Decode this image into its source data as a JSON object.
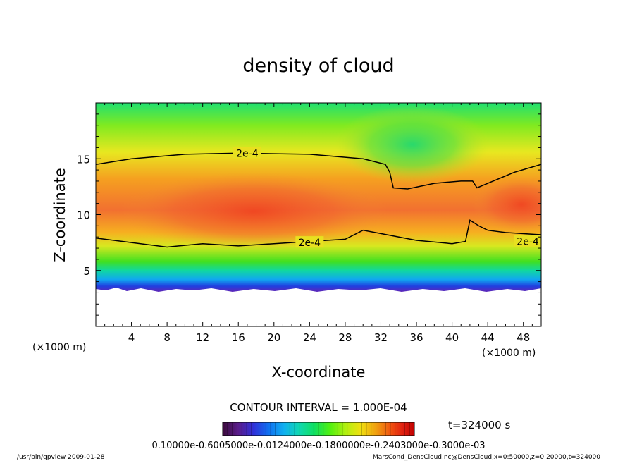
{
  "chart_data": {
    "type": "heatmap",
    "title": "density of cloud",
    "xlabel": "X-coordinate",
    "ylabel": "Z-coordinate",
    "x_unit_left": "(×1000 m)",
    "x_unit_right": "(×1000 m)",
    "xlim": [
      0,
      50
    ],
    "ylim": [
      0,
      20
    ],
    "xticks": [
      4,
      8,
      12,
      16,
      20,
      24,
      28,
      32,
      36,
      40,
      44,
      48
    ],
    "yticks": [
      5,
      10,
      15
    ],
    "contour_interval_text": "CONTOUR INTERVAL = 1.000E-04",
    "time_text": "t=324000 s",
    "colorbar_labels_text": "0.10000e-0.6005000e-0.0124000e-0.1800000e-0.2403000e-0.3000e-03",
    "contour_labels": [
      {
        "text": "2e-4",
        "x": 17,
        "z": 15.5
      },
      {
        "text": "2e-4",
        "x": 24,
        "z": 7.5
      },
      {
        "text": "2e-4",
        "x": 48.5,
        "z": 7.6
      }
    ],
    "contour_upper_2e4": [
      [
        0,
        14.5
      ],
      [
        4,
        15
      ],
      [
        10,
        15.4
      ],
      [
        16,
        15.5
      ],
      [
        24,
        15.4
      ],
      [
        30,
        15
      ],
      [
        32.5,
        14.5
      ],
      [
        33,
        13.8
      ],
      [
        33.4,
        12.4
      ],
      [
        35,
        12.3
      ],
      [
        38,
        12.8
      ],
      [
        41,
        13
      ],
      [
        42.3,
        13
      ],
      [
        42.8,
        12.4
      ],
      [
        44,
        12.8
      ],
      [
        47,
        13.8
      ],
      [
        50,
        14.5
      ]
    ],
    "contour_lower_2e4": [
      [
        0,
        7.9
      ],
      [
        4,
        7.5
      ],
      [
        8,
        7.1
      ],
      [
        12,
        7.4
      ],
      [
        16,
        7.2
      ],
      [
        20,
        7.4
      ],
      [
        24,
        7.6
      ],
      [
        28,
        7.8
      ],
      [
        30,
        8.6
      ],
      [
        32,
        8.3
      ],
      [
        36,
        7.7
      ],
      [
        40,
        7.4
      ],
      [
        41.5,
        7.6
      ],
      [
        42,
        9.5
      ],
      [
        43,
        9
      ],
      [
        44,
        8.6
      ],
      [
        46,
        8.4
      ],
      [
        50,
        8.2
      ]
    ],
    "colorbar": {
      "min": 0.0001,
      "max": 0.0003,
      "colors": [
        "#3a0a3a",
        "#5a1c8a",
        "#3030d8",
        "#1070f0",
        "#10b0f0",
        "#10d8b0",
        "#10e060",
        "#50f010",
        "#b0f010",
        "#f0e010",
        "#f0a010",
        "#f05010",
        "#e02010",
        "#c00000"
      ]
    }
  },
  "footer": {
    "left": "/usr/bin/gpview   2009-01-28",
    "right": "MarsCond_DensCloud.nc@DensCloud,x=0:50000,z=0:20000,t=324000"
  }
}
